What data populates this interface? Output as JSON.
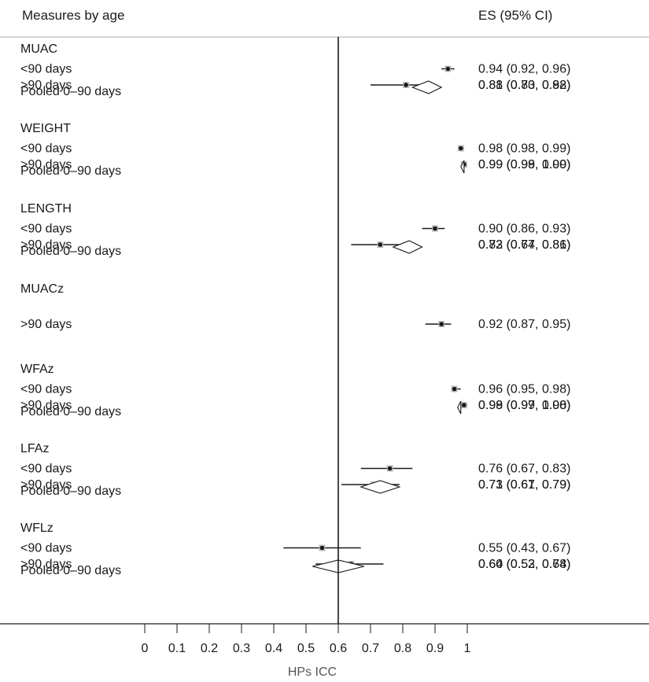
{
  "chart_data": {
    "type": "forest",
    "header_left": "Measures by age",
    "header_right": "ES (95% CI)",
    "xlabel": "HPs ICC",
    "xlim": [
      0,
      1
    ],
    "xticks": [
      "0",
      "0.1",
      "0.2",
      "0.3",
      "0.4",
      "0.5",
      "0.6",
      "0.7",
      "0.8",
      "0.9",
      "1"
    ],
    "reference_line": 0.6,
    "groups": [
      {
        "name": "MUAC",
        "rows": [
          {
            "label": "<90 days",
            "es": 0.94,
            "lo": 0.92,
            "hi": 0.96,
            "text": "0.94 (0.92, 0.96)"
          },
          {
            "label": ">90 days",
            "es": 0.81,
            "lo": 0.7,
            "hi": 0.88,
            "text": "0.81 (0.70, 0.88)"
          },
          {
            "label": "Pooled 0–90 days",
            "pooled": true,
            "es": 0.88,
            "lo": 0.83,
            "hi": 0.92,
            "text": "0.88 (0.83, 0.92)"
          }
        ]
      },
      {
        "name": "WEIGHT",
        "rows": [
          {
            "label": "<90 days",
            "es": 0.98,
            "lo": 0.98,
            "hi": 0.99,
            "text": "0.98 (0.98, 0.99)"
          },
          {
            "label": ">90 days",
            "es": 0.99,
            "lo": 0.99,
            "hi": 1.0,
            "text": "0.99 (0.99, 1.00)"
          },
          {
            "label": "Pooled 0–90 days",
            "pooled": true,
            "es": 0.99,
            "lo": 0.98,
            "hi": 0.99,
            "text": "0.99 (0.98, 0.99)"
          }
        ]
      },
      {
        "name": "LENGTH",
        "rows": [
          {
            "label": "<90 days",
            "es": 0.9,
            "lo": 0.86,
            "hi": 0.93,
            "text": "0.90 (0.86, 0.93)"
          },
          {
            "label": ">90 days",
            "es": 0.73,
            "lo": 0.64,
            "hi": 0.81,
            "text": "0.73 (0.64, 0.81)"
          },
          {
            "label": "Pooled 0–90 days",
            "pooled": true,
            "es": 0.82,
            "lo": 0.77,
            "hi": 0.86,
            "text": "0.82 (0.77, 0.86)"
          }
        ]
      },
      {
        "name": "MUACz",
        "rows": [
          {
            "label": ">90 days",
            "es": 0.92,
            "lo": 0.87,
            "hi": 0.95,
            "text": "0.92 (0.87, 0.95)"
          }
        ]
      },
      {
        "name": "WFAz",
        "rows": [
          {
            "label": "<90 days",
            "es": 0.96,
            "lo": 0.95,
            "hi": 0.98,
            "text": "0.96 (0.95, 0.98)"
          },
          {
            "label": ">90 days",
            "es": 0.99,
            "lo": 0.99,
            "hi": 1.0,
            "text": "0.99 (0.99, 1.00)"
          },
          {
            "label": "Pooled 0–90 days",
            "pooled": true,
            "es": 0.98,
            "lo": 0.97,
            "hi": 0.98,
            "text": "0.98 (0.97, 0.98)"
          }
        ]
      },
      {
        "name": "LFAz",
        "rows": [
          {
            "label": "<90 days",
            "es": 0.76,
            "lo": 0.67,
            "hi": 0.83,
            "text": "0.76 (0.67, 0.83)"
          },
          {
            "label": ">90 days",
            "es": 0.71,
            "lo": 0.61,
            "hi": 0.79,
            "text": "0.71 (0.61, 0.79)"
          },
          {
            "label": "Pooled 0–90 days",
            "pooled": true,
            "es": 0.73,
            "lo": 0.67,
            "hi": 0.79,
            "text": "0.73 (0.67, 0.79)"
          }
        ]
      },
      {
        "name": "WFLz",
        "rows": [
          {
            "label": "<90 days",
            "es": 0.55,
            "lo": 0.43,
            "hi": 0.67,
            "text": "0.55 (0.43, 0.67)"
          },
          {
            "label": ">90 days",
            "es": 0.64,
            "lo": 0.53,
            "hi": 0.74,
            "text": "0.64 (0.53, 0.74)"
          },
          {
            "label": "Pooled 0–90 days",
            "pooled": true,
            "es": 0.6,
            "lo": 0.52,
            "hi": 0.68,
            "text": "0.60 (0.52, 0.68)"
          }
        ]
      }
    ],
    "colors": {
      "ink": "#1a1a1a",
      "box": "#bdbdbd",
      "rule": "#aaaaaa"
    }
  }
}
